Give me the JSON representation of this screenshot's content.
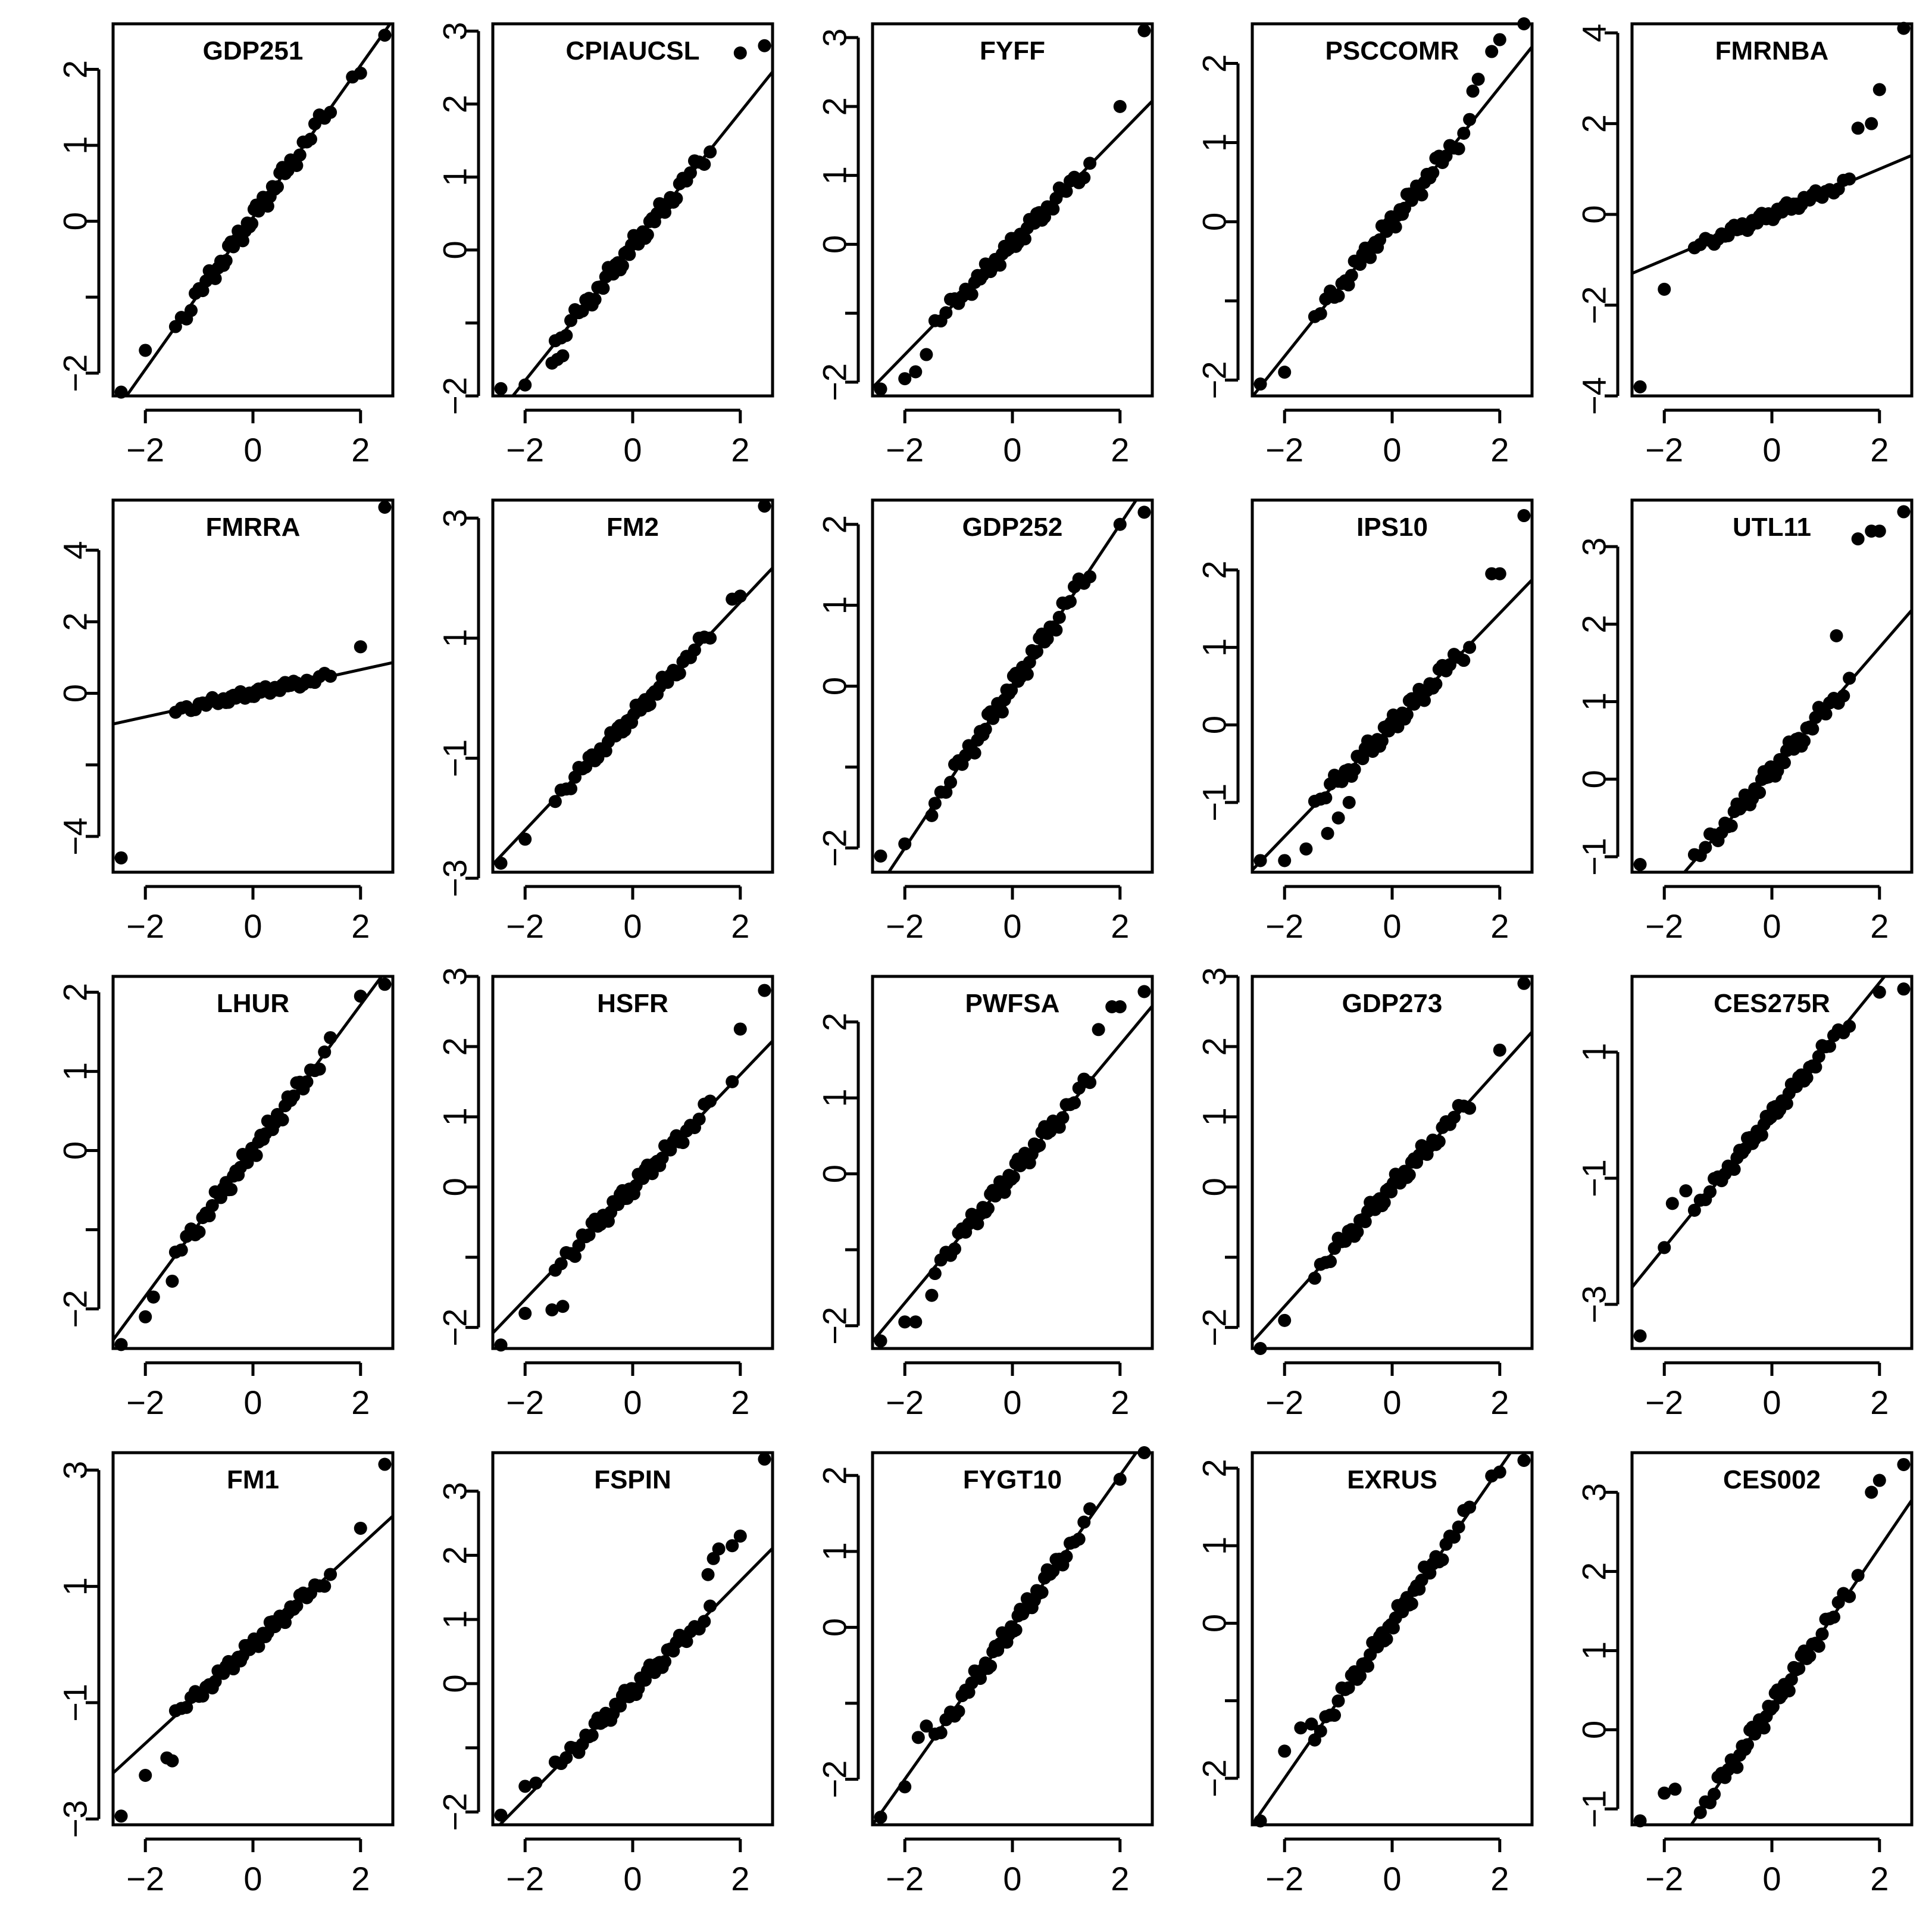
{
  "chart_data": {
    "type": "scatter",
    "description_kind": "normal Q-Q plots",
    "x_ticks": [
      -2,
      0,
      2
    ],
    "xlim": [
      -2.6,
      2.6
    ],
    "panels": [
      {
        "title": "GDP251",
        "ylim": [
          -2.3,
          2.6
        ],
        "y_ticks": [
          -2,
          -1,
          0,
          1,
          2
        ],
        "y_tick_labels": [
          "−2",
          "",
          "0",
          "1",
          "2"
        ],
        "line": {
          "intercept": 0.05,
          "slope": 1.0
        },
        "outliers": [
          [
            2.45,
            2.45
          ],
          [
            2.0,
            1.95
          ],
          [
            1.85,
            1.9
          ],
          [
            -2.0,
            -1.7
          ],
          [
            -2.45,
            -2.25
          ]
        ],
        "points": []
      },
      {
        "title": "CPIAUCSL",
        "ylim": [
          -2.0,
          3.1
        ],
        "y_ticks": [
          -2,
          -1,
          0,
          1,
          2,
          3
        ],
        "y_tick_labels": [
          "−2",
          "",
          "0",
          "1",
          "2",
          "3"
        ],
        "line": {
          "intercept": 0.05,
          "slope": 0.92
        },
        "outliers": [
          [
            2.45,
            2.8
          ],
          [
            2.0,
            2.7
          ],
          [
            -2.0,
            -1.85
          ],
          [
            -2.45,
            -1.9
          ],
          [
            -1.3,
            -1.45
          ],
          [
            -1.4,
            -1.5
          ],
          [
            -1.5,
            -1.55
          ]
        ],
        "points": []
      },
      {
        "title": "FYFF",
        "ylim": [
          -2.2,
          3.2
        ],
        "y_ticks": [
          -2,
          -1,
          0,
          1,
          2,
          3
        ],
        "y_tick_labels": [
          "−2",
          "",
          "0",
          "1",
          "2",
          "3"
        ],
        "line": {
          "intercept": 0.0,
          "slope": 0.8
        },
        "outliers": [
          [
            2.45,
            3.1
          ],
          [
            2.0,
            2.0
          ],
          [
            -1.8,
            -1.85
          ],
          [
            -2.0,
            -1.95
          ],
          [
            -2.45,
            -2.1
          ],
          [
            -1.6,
            -1.6
          ]
        ],
        "points": []
      },
      {
        "title": "PSCCOMR",
        "ylim": [
          -2.2,
          2.5
        ],
        "y_ticks": [
          -2,
          -1,
          0,
          1,
          2
        ],
        "y_tick_labels": [
          "−2",
          "",
          "0",
          "1",
          "2"
        ],
        "line": {
          "intercept": 0.0,
          "slope": 0.85
        },
        "outliers": [
          [
            2.45,
            2.5
          ],
          [
            2.0,
            2.3
          ],
          [
            1.85,
            2.15
          ],
          [
            1.6,
            1.8
          ],
          [
            1.5,
            1.65
          ],
          [
            -2.0,
            -1.9
          ],
          [
            -2.45,
            -2.05
          ]
        ],
        "points": []
      },
      {
        "title": "FMRNBA",
        "ylim": [
          -4.0,
          4.2
        ],
        "y_ticks": [
          -4,
          -2,
          0,
          2,
          4
        ],
        "y_tick_labels": [
          "−4",
          "−2",
          "0",
          "2",
          "4"
        ],
        "line": {
          "intercept": 0.0,
          "slope": 0.5
        },
        "outliers": [
          [
            2.45,
            4.1
          ],
          [
            2.0,
            2.75
          ],
          [
            1.85,
            2.0
          ],
          [
            1.6,
            1.9
          ],
          [
            -2.0,
            -1.65
          ],
          [
            -2.45,
            -3.8
          ]
        ],
        "points": []
      },
      {
        "title": "FMRRA",
        "ylim": [
          -5.0,
          5.4
        ],
        "y_ticks": [
          -4,
          -2,
          0,
          2,
          4
        ],
        "y_tick_labels": [
          "−4",
          "",
          "0",
          "2",
          "4"
        ],
        "line": {
          "intercept": 0.0,
          "slope": 0.33
        },
        "outliers": [
          [
            2.45,
            5.2
          ],
          [
            2.0,
            1.3
          ],
          [
            -2.45,
            -4.6
          ]
        ],
        "points": []
      },
      {
        "title": "FM2",
        "ylim": [
          -2.9,
          3.3
        ],
        "y_ticks": [
          -3,
          -1,
          1,
          3
        ],
        "y_tick_labels": [
          "−3",
          "−1",
          "1",
          "3"
        ],
        "line": {
          "intercept": -0.3,
          "slope": 0.95
        },
        "outliers": [
          [
            2.45,
            3.2
          ],
          [
            2.0,
            1.7
          ],
          [
            1.85,
            1.65
          ],
          [
            -2.0,
            -2.35
          ],
          [
            -2.45,
            -2.75
          ]
        ],
        "points": []
      },
      {
        "title": "GDP252",
        "ylim": [
          -2.3,
          2.3
        ],
        "y_ticks": [
          -2,
          -1,
          0,
          1,
          2
        ],
        "y_tick_labels": [
          "−2",
          "",
          "0",
          "1",
          "2"
        ],
        "line": {
          "intercept": 0.0,
          "slope": 1.0
        },
        "outliers": [
          [
            2.45,
            2.15
          ],
          [
            2.0,
            2.0
          ],
          [
            -1.5,
            -1.6
          ],
          [
            -2.0,
            -1.95
          ],
          [
            -2.45,
            -2.1
          ]
        ],
        "points": []
      },
      {
        "title": "IPS10",
        "ylim": [
          -1.9,
          2.9
        ],
        "y_ticks": [
          -1,
          0,
          1,
          2
        ],
        "y_tick_labels": [
          "−1",
          "0",
          "1",
          "2"
        ],
        "line": {
          "intercept": 0.0,
          "slope": 0.72
        },
        "outliers": [
          [
            2.45,
            2.7
          ],
          [
            2.0,
            1.95
          ],
          [
            1.85,
            1.95
          ],
          [
            -2.45,
            -1.75
          ],
          [
            -2.0,
            -1.75
          ],
          [
            -1.6,
            -1.6
          ],
          [
            -1.2,
            -1.4
          ],
          [
            -1.0,
            -1.2
          ],
          [
            -0.8,
            -1.0
          ]
        ],
        "points": []
      },
      {
        "title": "UTL11",
        "ylim": [
          -1.2,
          3.6
        ],
        "y_ticks": [
          -1,
          0,
          1,
          2,
          3
        ],
        "y_tick_labels": [
          "−1",
          "0",
          "1",
          "2",
          "3"
        ],
        "line": {
          "intercept": 0.1,
          "slope": 0.8
        },
        "outliers": [
          [
            2.45,
            3.45
          ],
          [
            2.0,
            3.2
          ],
          [
            1.85,
            3.2
          ],
          [
            1.6,
            3.1
          ],
          [
            1.2,
            1.85
          ],
          [
            -2.45,
            -1.1
          ]
        ],
        "points": []
      },
      {
        "title": "LHUR",
        "ylim": [
          -2.5,
          2.2
        ],
        "y_ticks": [
          -2,
          -1,
          0,
          1,
          2
        ],
        "y_tick_labels": [
          "−2",
          "",
          "0",
          "1",
          "2"
        ],
        "line": {
          "intercept": 0.0,
          "slope": 0.92
        },
        "outliers": [
          [
            2.45,
            2.1
          ],
          [
            2.0,
            1.95
          ],
          [
            -2.45,
            -2.45
          ],
          [
            -2.0,
            -2.1
          ],
          [
            -1.85,
            -1.85
          ],
          [
            -1.5,
            -1.65
          ]
        ],
        "points": []
      },
      {
        "title": "HSFR",
        "ylim": [
          -2.3,
          3.0
        ],
        "y_ticks": [
          -2,
          -1,
          0,
          1,
          2,
          3
        ],
        "y_tick_labels": [
          "−2",
          "",
          "0",
          "1",
          "2",
          "3"
        ],
        "line": {
          "intercept": 0.0,
          "slope": 0.8
        },
        "outliers": [
          [
            2.45,
            2.8
          ],
          [
            2.0,
            2.25
          ],
          [
            1.85,
            1.5
          ],
          [
            -2.45,
            -2.25
          ],
          [
            -2.0,
            -1.8
          ],
          [
            -1.5,
            -1.75
          ],
          [
            -1.3,
            -1.7
          ]
        ],
        "points": []
      },
      {
        "title": "PWFSA",
        "ylim": [
          -2.3,
          2.6
        ],
        "y_ticks": [
          -2,
          -1,
          0,
          1,
          2
        ],
        "y_tick_labels": [
          "−2",
          "",
          "0",
          "1",
          "2"
        ],
        "line": {
          "intercept": 0.0,
          "slope": 0.85
        },
        "outliers": [
          [
            2.45,
            2.4
          ],
          [
            2.0,
            2.2
          ],
          [
            1.85,
            2.2
          ],
          [
            1.6,
            1.9
          ],
          [
            -2.45,
            -2.2
          ],
          [
            -2.0,
            -1.95
          ],
          [
            -1.8,
            -1.95
          ],
          [
            -1.5,
            -1.6
          ]
        ],
        "points": []
      },
      {
        "title": "GDP273",
        "ylim": [
          -2.3,
          3.0
        ],
        "y_ticks": [
          -2,
          -1,
          0,
          1,
          2,
          3
        ],
        "y_tick_labels": [
          "−2",
          "",
          "0",
          "1",
          "2",
          "3"
        ],
        "line": {
          "intercept": 0.0,
          "slope": 0.85
        },
        "outliers": [
          [
            2.45,
            2.9
          ],
          [
            2.0,
            1.95
          ],
          [
            -2.45,
            -2.3
          ],
          [
            -2.0,
            -1.9
          ]
        ],
        "points": []
      },
      {
        "title": "CES275R",
        "ylim": [
          -3.7,
          2.2
        ],
        "y_ticks": [
          -3,
          -1,
          1
        ],
        "y_tick_labels": [
          "−3",
          "−1",
          "1"
        ],
        "line": {
          "intercept": 0.0,
          "slope": 1.05
        },
        "outliers": [
          [
            2.45,
            2.0
          ],
          [
            2.0,
            1.95
          ],
          [
            -2.45,
            -3.5
          ],
          [
            -2.0,
            -2.1
          ],
          [
            -1.85,
            -1.4
          ],
          [
            -1.6,
            -1.2
          ]
        ],
        "points": []
      },
      {
        "title": "FM1",
        "ylim": [
          -3.1,
          3.3
        ],
        "y_ticks": [
          -3,
          -1,
          1,
          3
        ],
        "y_tick_labels": [
          "−3",
          "−1",
          "1",
          "3"
        ],
        "line": {
          "intercept": 0.0,
          "slope": 0.85
        },
        "outliers": [
          [
            2.45,
            3.1
          ],
          [
            2.0,
            2.0
          ],
          [
            -2.45,
            -2.95
          ],
          [
            -2.0,
            -2.25
          ],
          [
            -1.6,
            -1.95
          ],
          [
            -1.5,
            -2.0
          ]
        ],
        "points": []
      },
      {
        "title": "FSPIN",
        "ylim": [
          -2.2,
          3.6
        ],
        "y_ticks": [
          -2,
          -1,
          0,
          1,
          2,
          3
        ],
        "y_tick_labels": [
          "−2",
          "",
          "0",
          "1",
          "2",
          "3"
        ],
        "line": {
          "intercept": -0.1,
          "slope": 0.85
        },
        "outliers": [
          [
            2.45,
            3.5
          ],
          [
            2.0,
            2.3
          ],
          [
            1.85,
            2.15
          ],
          [
            1.6,
            2.1
          ],
          [
            1.5,
            1.95
          ],
          [
            1.4,
            1.7
          ],
          [
            -2.45,
            -2.05
          ],
          [
            -2.0,
            -1.6
          ],
          [
            -1.8,
            -1.55
          ]
        ],
        "points": []
      },
      {
        "title": "FYGT10",
        "ylim": [
          -2.6,
          2.3
        ],
        "y_ticks": [
          -2,
          -1,
          0,
          1,
          2
        ],
        "y_tick_labels": [
          "−2",
          "",
          "0",
          "1",
          "2"
        ],
        "line": {
          "intercept": 0.0,
          "slope": 1.0
        },
        "outliers": [
          [
            2.45,
            2.3
          ],
          [
            2.0,
            1.95
          ],
          [
            -2.45,
            -2.5
          ],
          [
            -2.0,
            -2.1
          ],
          [
            -1.75,
            -1.45
          ],
          [
            -1.6,
            -1.3
          ]
        ],
        "points": []
      },
      {
        "title": "EXRUS",
        "ylim": [
          -2.6,
          2.2
        ],
        "y_ticks": [
          -2,
          -1,
          0,
          1,
          2
        ],
        "y_tick_labels": [
          "−2",
          "",
          "0",
          "1",
          "2"
        ],
        "line": {
          "intercept": 0.0,
          "slope": 1.0
        },
        "outliers": [
          [
            2.45,
            2.1
          ],
          [
            2.0,
            1.95
          ],
          [
            1.85,
            1.9
          ],
          [
            -2.45,
            -2.55
          ],
          [
            -2.0,
            -1.65
          ],
          [
            -1.7,
            -1.35
          ],
          [
            -1.5,
            -1.3
          ]
        ],
        "points": []
      },
      {
        "title": "CES002",
        "ylim": [
          -1.2,
          3.5
        ],
        "y_ticks": [
          -1,
          0,
          1,
          2,
          3
        ],
        "y_tick_labels": [
          "−1",
          "0",
          "1",
          "2",
          "3"
        ],
        "line": {
          "intercept": 0.3,
          "slope": 1.0
        },
        "outliers": [
          [
            2.45,
            3.35
          ],
          [
            2.0,
            3.15
          ],
          [
            1.85,
            3.0
          ],
          [
            1.6,
            1.95
          ],
          [
            -2.45,
            -1.15
          ],
          [
            -2.0,
            -0.8
          ],
          [
            -1.8,
            -0.75
          ]
        ],
        "points": []
      }
    ]
  }
}
